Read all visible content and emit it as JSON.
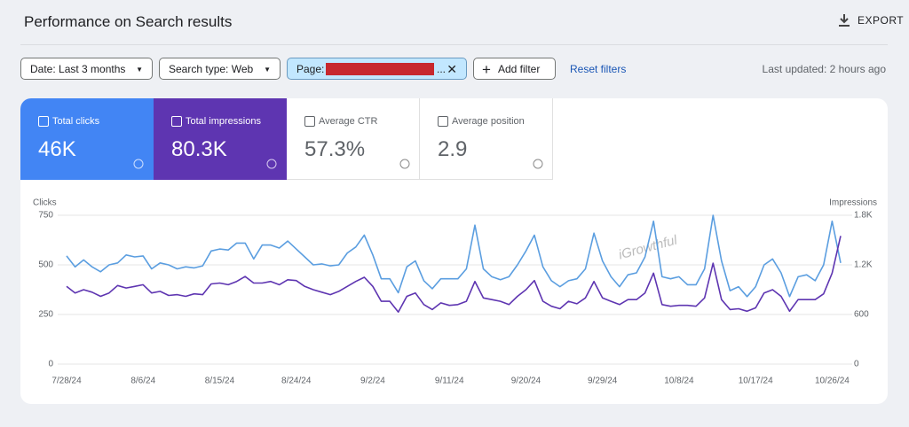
{
  "header": {
    "title": "Performance on Search results",
    "export": "EXPORT"
  },
  "filters": {
    "date": "Date: Last 3 months",
    "search_type": "Search type: Web",
    "page_label": "Page:",
    "page_suffix": "...",
    "add_filter": "Add filter",
    "reset": "Reset filters",
    "last_updated": "Last updated: 2 hours ago"
  },
  "metrics": [
    {
      "label": "Total clicks",
      "value": "46K"
    },
    {
      "label": "Total impressions",
      "value": "80.3K"
    },
    {
      "label": "Average CTR",
      "value": "57.3%"
    },
    {
      "label": "Average position",
      "value": "2.9"
    }
  ],
  "chart_data": {
    "type": "line",
    "y_label": "Clicks",
    "y2_label": "Impressions",
    "annotation": "iGrowthful",
    "categories": [
      "7/28/24",
      null,
      null,
      null,
      null,
      null,
      null,
      null,
      null,
      "8/6/24",
      null,
      null,
      null,
      null,
      null,
      null,
      null,
      null,
      "8/15/24",
      null,
      null,
      null,
      null,
      null,
      null,
      null,
      null,
      "8/24/24",
      null,
      null,
      null,
      null,
      null,
      null,
      null,
      null,
      "9/2/24",
      null,
      null,
      null,
      null,
      null,
      null,
      null,
      null,
      "9/11/24",
      null,
      null,
      null,
      null,
      null,
      null,
      null,
      null,
      "9/20/24",
      null,
      null,
      null,
      null,
      null,
      null,
      null,
      null,
      "9/29/24",
      null,
      null,
      null,
      null,
      null,
      null,
      null,
      null,
      "10/8/24",
      null,
      null,
      null,
      null,
      null,
      null,
      null,
      null,
      "10/17/24",
      null,
      null,
      null,
      null,
      null,
      null,
      null,
      null,
      "10/26/24",
      null
    ],
    "series": [
      {
        "name": "Clicks",
        "color": "#5b9ee0",
        "values": [
          545,
          490,
          525,
          490,
          465,
          500,
          510,
          550,
          540,
          545,
          480,
          510,
          500,
          480,
          490,
          485,
          495,
          570,
          580,
          575,
          610,
          610,
          530,
          600,
          600,
          585,
          620,
          580,
          540,
          500,
          505,
          495,
          500,
          560,
          590,
          650,
          550,
          430,
          430,
          360,
          490,
          520,
          420,
          380,
          430,
          430,
          430,
          480,
          700,
          480,
          440,
          425,
          440,
          500,
          570,
          650,
          490,
          420,
          390,
          420,
          430,
          480,
          660,
          520,
          440,
          390,
          450,
          460,
          540,
          720,
          440,
          430,
          440,
          400,
          400,
          480,
          750,
          520,
          370,
          390,
          340,
          390,
          500,
          530,
          460,
          340,
          440,
          450,
          420,
          500,
          720,
          510
        ]
      },
      {
        "name": "Impressions",
        "color": "#5e35b1",
        "axis": "y2",
        "values": [
          940,
          860,
          900,
          870,
          820,
          860,
          950,
          920,
          940,
          960,
          860,
          880,
          830,
          840,
          820,
          850,
          840,
          970,
          980,
          960,
          1000,
          1060,
          980,
          980,
          1000,
          960,
          1020,
          1010,
          940,
          900,
          870,
          840,
          880,
          940,
          1000,
          1050,
          940,
          760,
          760,
          630,
          820,
          860,
          720,
          660,
          740,
          710,
          720,
          760,
          1000,
          800,
          780,
          760,
          720,
          820,
          900,
          1010,
          760,
          700,
          670,
          760,
          730,
          800,
          1000,
          800,
          760,
          720,
          780,
          780,
          860,
          1100,
          720,
          700,
          710,
          710,
          700,
          800,
          1220,
          780,
          660,
          670,
          640,
          680,
          860,
          900,
          820,
          640,
          780,
          780,
          780,
          850,
          1100,
          1550
        ]
      }
    ],
    "ylim": [
      0,
      750
    ],
    "yticks": [
      0,
      250,
      500,
      750
    ],
    "y2lim": [
      0,
      1800
    ],
    "y2ticks": [
      0,
      600,
      {
        "value": 1200,
        "label": "1.2K"
      },
      {
        "value": 1800,
        "label": "1.8K"
      }
    ],
    "grid": true
  }
}
